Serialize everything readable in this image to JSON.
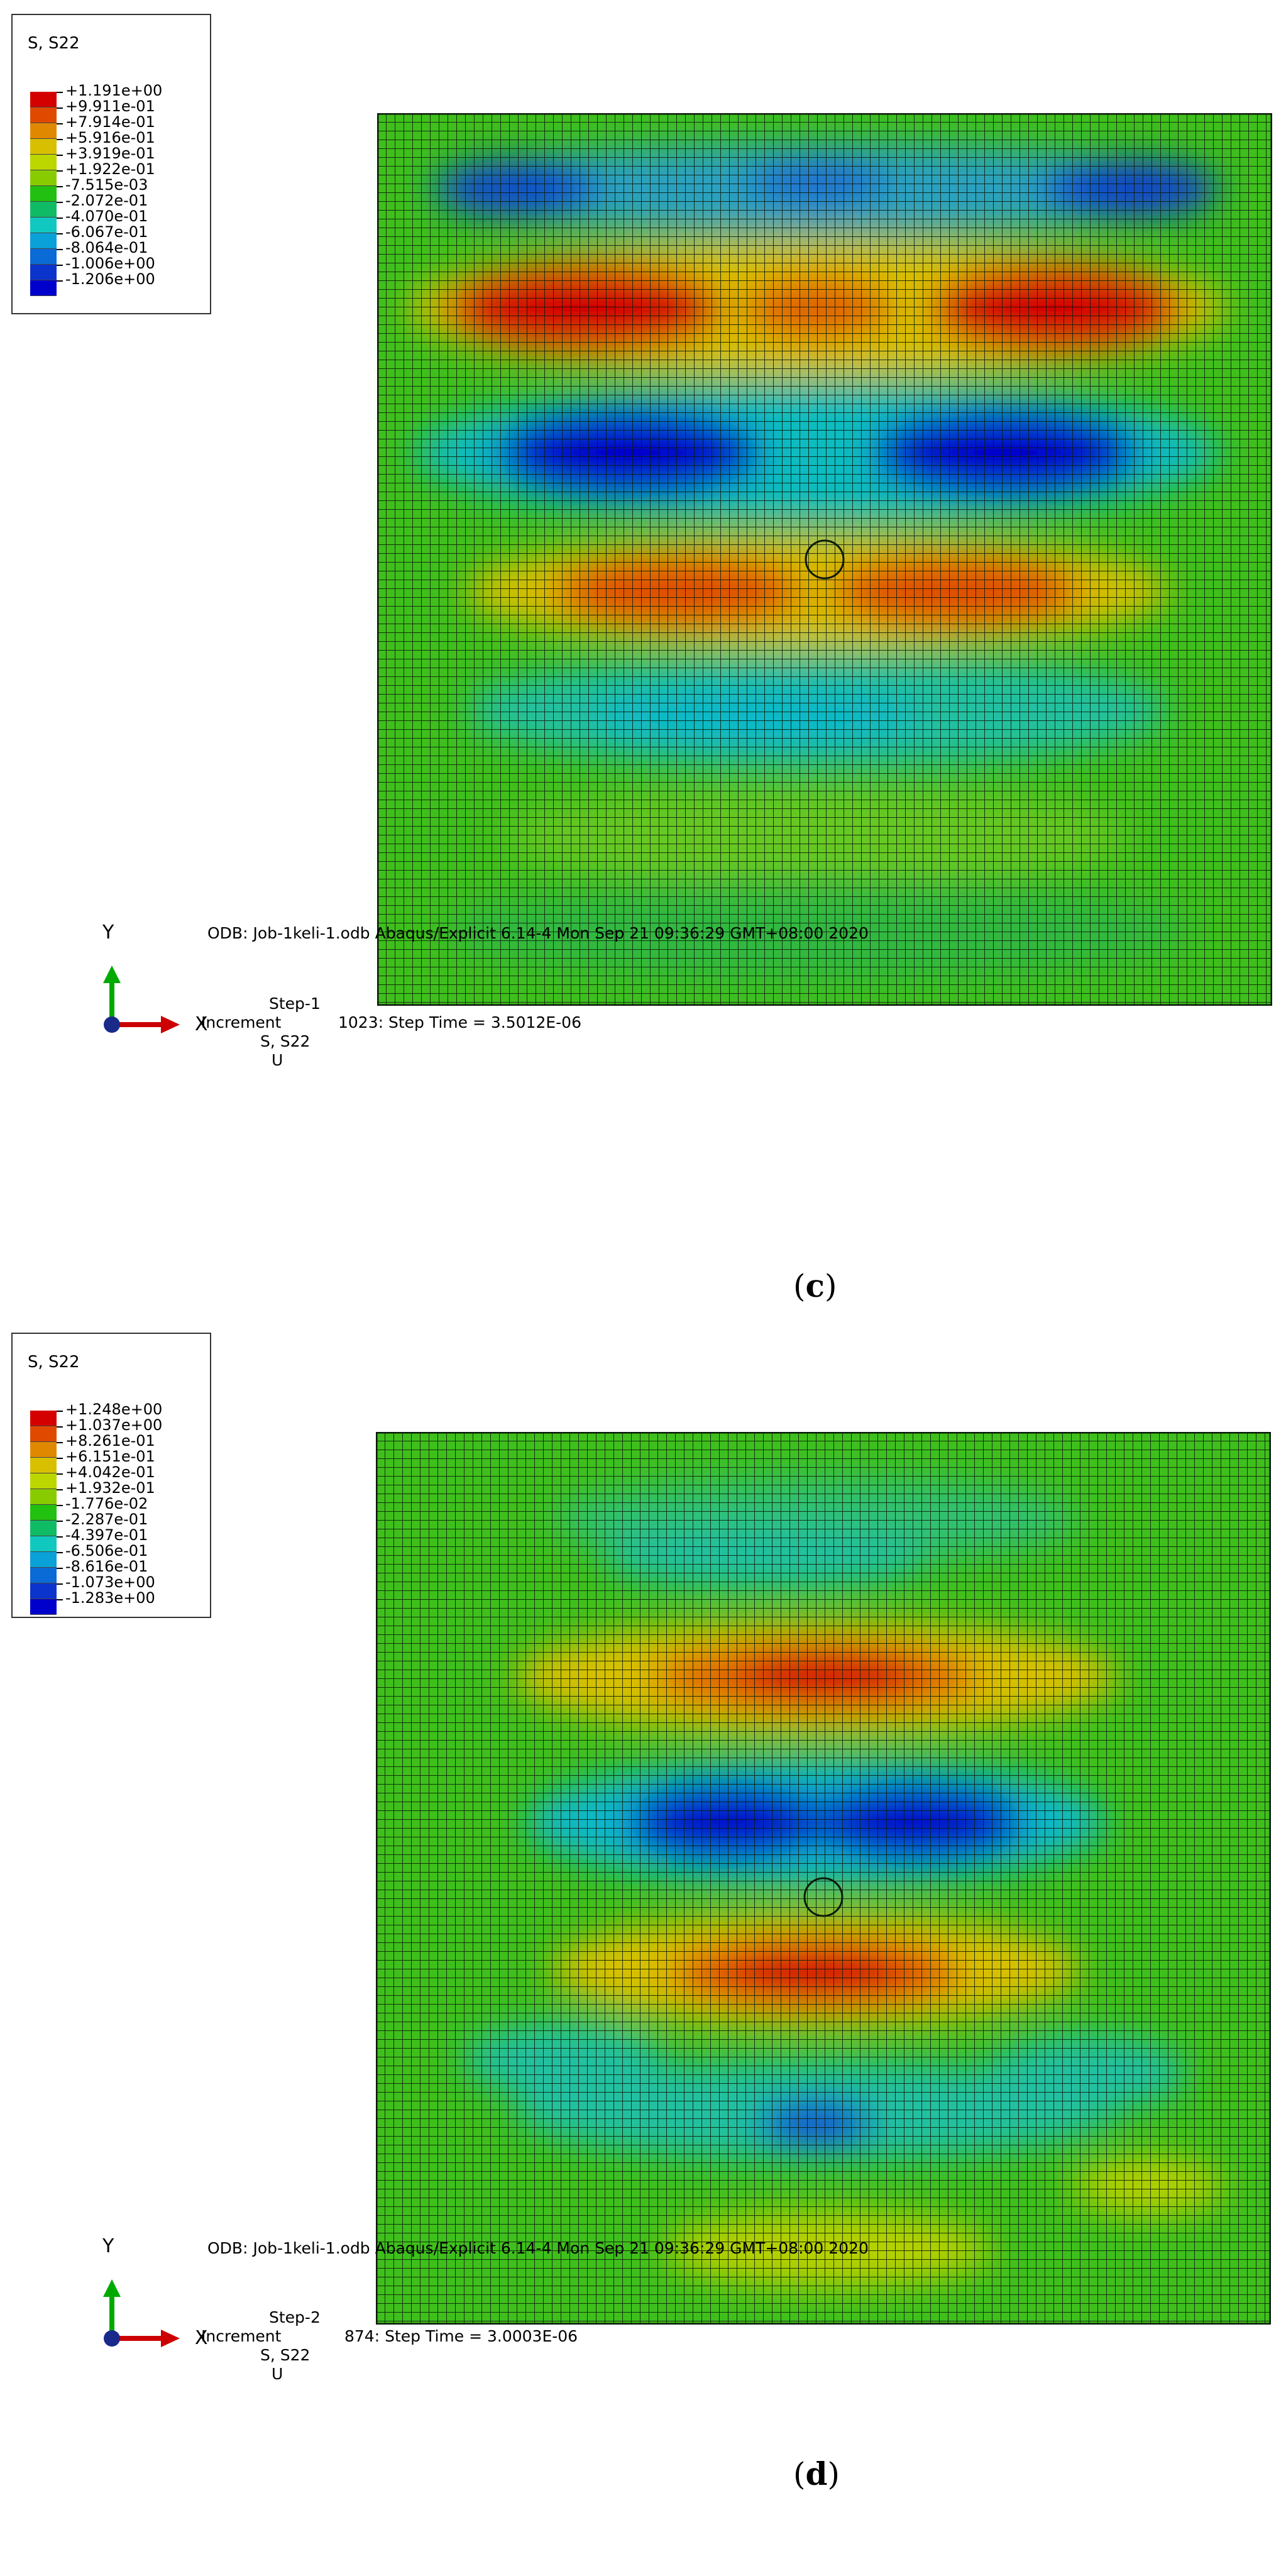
{
  "colors": [
    "#d40000",
    "#e04a00",
    "#e08800",
    "#d8c000",
    "#bcd600",
    "#88cc00",
    "#22c010",
    "#10bb66",
    "#10c8c0",
    "#0aa0d8",
    "#0a6ad6",
    "#0a34cc",
    "#0000cc"
  ],
  "panels": [
    {
      "id": "c",
      "caption_letter": "c",
      "legend_title": "S, S22",
      "legend_values": [
        "+1.191e+00",
        "+9.911e-01",
        "+7.914e-01",
        "+5.916e-01",
        "+3.919e-01",
        "+1.922e-01",
        "-7.515e-03",
        "-2.072e-01",
        "-4.070e-01",
        "-6.067e-01",
        "-8.064e-01",
        "-1.006e+00",
        "-1.206e+00"
      ],
      "odb_text": "ODB: Job-1keli-1.odb    Abaqus/Explicit 6.14-4    Mon Sep 21 09:36:29 GMT+08:00 2020",
      "step": "Step-1",
      "increment": "Increment",
      "increment_text": "1023: Step Time =    3.5012E-06",
      "primary_var": "S, S22",
      "deformed_var": "U",
      "axis_y": "Y",
      "axis_x": "X"
    },
    {
      "id": "d",
      "caption_letter": "d",
      "legend_title": "S, S22",
      "legend_values": [
        "+1.248e+00",
        "+1.037e+00",
        "+8.261e-01",
        "+6.151e-01",
        "+4.042e-01",
        "+1.932e-01",
        "-1.776e-02",
        "-2.287e-01",
        "-4.397e-01",
        "-6.506e-01",
        "-8.616e-01",
        "-1.073e+00",
        "-1.283e+00"
      ],
      "odb_text": "ODB: Job-1keli-1.odb    Abaqus/Explicit 6.14-4    Mon Sep 21 09:36:29 GMT+08:00 2020",
      "step": "Step-2",
      "increment": "Increment",
      "increment_text": "874: Step Time =    3.0003E-06",
      "primary_var": "S, S22",
      "deformed_var": "U",
      "axis_y": "Y",
      "axis_x": "X"
    }
  ]
}
